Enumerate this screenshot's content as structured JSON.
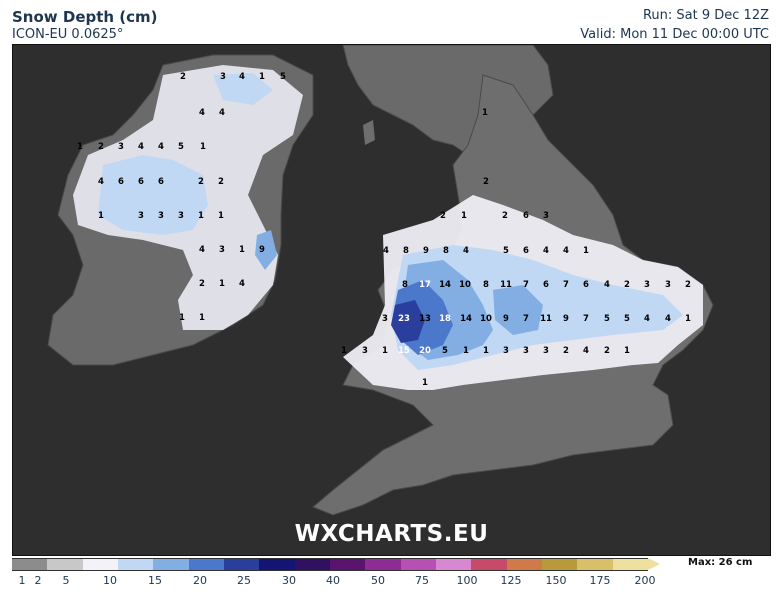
{
  "header": {
    "title": "Snow Depth (cm)",
    "subtitle": "ICON-EU 0.0625°",
    "run": "Run: Sat 9 Dec 12Z",
    "valid": "Valid: Mon 11 Dec 00:00 UTC"
  },
  "watermark": "WXCHARTS.EU",
  "legend": {
    "max_label": "Max: 26 cm",
    "ticks": [
      "1",
      "2",
      "5",
      "10",
      "15",
      "20",
      "25",
      "30",
      "40",
      "50",
      "75",
      "100",
      "125",
      "150",
      "175",
      "200"
    ],
    "colors": [
      "#8c8c8c",
      "#c8c8c8",
      "#f2f2f8",
      "#c0d8f4",
      "#82aee4",
      "#4c78cc",
      "#2a3e9e",
      "#141474",
      "#301060",
      "#5a1470",
      "#8c2c94",
      "#b850b4",
      "#d888d0",
      "#c84a6a",
      "#d07a4a",
      "#b89a3a",
      "#d8c06a",
      "#f0e0a0"
    ]
  },
  "snow_values": [
    {
      "v": "2"
    },
    {
      "v": "3"
    },
    {
      "v": "4"
    },
    {
      "v": "1"
    },
    {
      "v": "5"
    },
    {
      "v": "4"
    },
    {
      "v": "4"
    },
    {
      "v": "1"
    },
    {
      "v": "2"
    },
    {
      "v": "3"
    },
    {
      "v": "4"
    },
    {
      "v": "4"
    },
    {
      "v": "5"
    },
    {
      "v": "1"
    },
    {
      "v": "4"
    },
    {
      "v": "6"
    },
    {
      "v": "6"
    },
    {
      "v": "6"
    },
    {
      "v": "2"
    },
    {
      "v": "2"
    },
    {
      "v": "1"
    },
    {
      "v": "3"
    },
    {
      "v": "3"
    },
    {
      "v": "3"
    },
    {
      "v": "1"
    },
    {
      "v": "1"
    },
    {
      "v": "4"
    },
    {
      "v": "3"
    },
    {
      "v": "1"
    },
    {
      "v": "9"
    },
    {
      "v": "2"
    },
    {
      "v": "1"
    },
    {
      "v": "4"
    },
    {
      "v": "1"
    },
    {
      "v": "1"
    },
    {
      "v": "1"
    },
    {
      "v": "2"
    },
    {
      "v": "1"
    },
    {
      "v": "2"
    },
    {
      "v": "6"
    },
    {
      "v": "3"
    },
    {
      "v": "2"
    },
    {
      "v": "4"
    },
    {
      "v": "8"
    },
    {
      "v": "9"
    },
    {
      "v": "8"
    },
    {
      "v": "4"
    },
    {
      "v": "5"
    },
    {
      "v": "6"
    },
    {
      "v": "4"
    },
    {
      "v": "4"
    },
    {
      "v": "1"
    },
    {
      "v": "8"
    },
    {
      "v": "17"
    },
    {
      "v": "14"
    },
    {
      "v": "10"
    },
    {
      "v": "8"
    },
    {
      "v": "11"
    },
    {
      "v": "7"
    },
    {
      "v": "6"
    },
    {
      "v": "7"
    },
    {
      "v": "6"
    },
    {
      "v": "4"
    },
    {
      "v": "2"
    },
    {
      "v": "3"
    },
    {
      "v": "3"
    },
    {
      "v": "2"
    },
    {
      "v": "3"
    },
    {
      "v": "23"
    },
    {
      "v": "13"
    },
    {
      "v": "18"
    },
    {
      "v": "14"
    },
    {
      "v": "10"
    },
    {
      "v": "9"
    },
    {
      "v": "7"
    },
    {
      "v": "11"
    },
    {
      "v": "9"
    },
    {
      "v": "7"
    },
    {
      "v": "5"
    },
    {
      "v": "5"
    },
    {
      "v": "4"
    },
    {
      "v": "4"
    },
    {
      "v": "1"
    },
    {
      "v": "1"
    },
    {
      "v": "3"
    },
    {
      "v": "1"
    },
    {
      "v": "15"
    },
    {
      "v": "20"
    },
    {
      "v": "5"
    },
    {
      "v": "1"
    },
    {
      "v": "1"
    },
    {
      "v": "3"
    },
    {
      "v": "3"
    },
    {
      "v": "3"
    },
    {
      "v": "2"
    },
    {
      "v": "4"
    },
    {
      "v": "2"
    },
    {
      "v": "1"
    },
    {
      "v": "1"
    }
  ]
}
